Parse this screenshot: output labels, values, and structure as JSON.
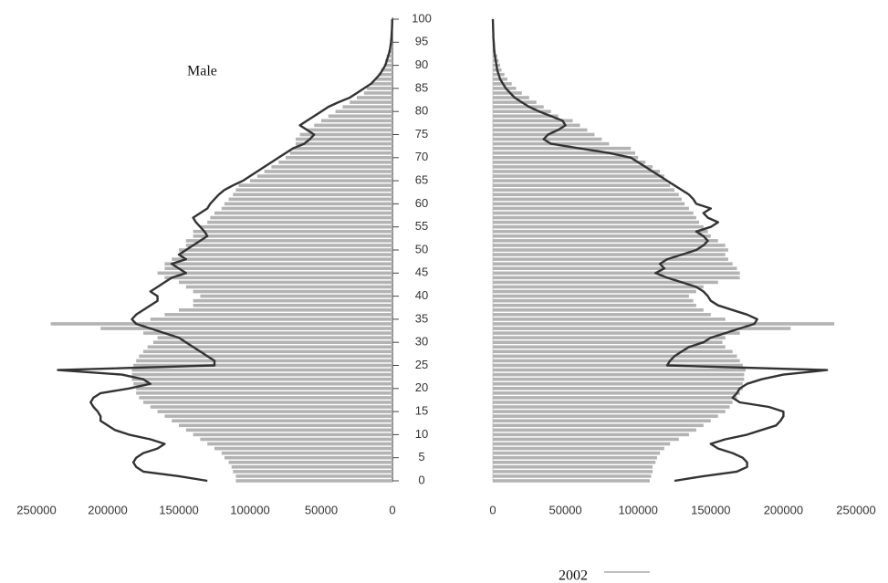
{
  "chart_data": {
    "type": "pyramid",
    "annotation": "Male",
    "legend": "2002",
    "ages": [
      0,
      1,
      2,
      3,
      4,
      5,
      6,
      7,
      8,
      9,
      10,
      11,
      12,
      13,
      14,
      15,
      16,
      17,
      18,
      19,
      20,
      21,
      22,
      23,
      24,
      25,
      26,
      27,
      28,
      29,
      30,
      31,
      32,
      33,
      34,
      35,
      36,
      37,
      38,
      39,
      40,
      41,
      42,
      43,
      44,
      45,
      46,
      47,
      48,
      49,
      50,
      51,
      52,
      53,
      54,
      55,
      56,
      57,
      58,
      59,
      60,
      61,
      62,
      63,
      64,
      65,
      66,
      67,
      68,
      69,
      70,
      71,
      72,
      73,
      74,
      75,
      76,
      77,
      78,
      79,
      80,
      81,
      82,
      83,
      84,
      85,
      86,
      87,
      88,
      89,
      90,
      91,
      92,
      93,
      94,
      95,
      96,
      97,
      98,
      99,
      100
    ],
    "xlim": [
      0,
      250000
    ],
    "xticks": [
      0,
      50000,
      100000,
      150000,
      200000,
      250000
    ],
    "ylim": [
      0,
      100
    ],
    "yticks": [
      0,
      5,
      10,
      15,
      20,
      25,
      30,
      35,
      40,
      45,
      50,
      55,
      60,
      65,
      70,
      75,
      80,
      85,
      90,
      95,
      100
    ],
    "series": [
      {
        "side": "left",
        "kind": "bar",
        "color": "#b3b3b3",
        "values": [
          110000,
          110000,
          112000,
          113000,
          115000,
          118000,
          120000,
          125000,
          130000,
          135000,
          140000,
          145000,
          150000,
          155000,
          160000,
          165000,
          170000,
          175000,
          178000,
          180000,
          180000,
          182000,
          183000,
          183000,
          183000,
          182000,
          180000,
          178000,
          175000,
          172000,
          168000,
          165000,
          175000,
          205000,
          240000,
          170000,
          160000,
          150000,
          140000,
          140000,
          135000,
          140000,
          145000,
          150000,
          160000,
          165000,
          160000,
          160000,
          155000,
          150000,
          150000,
          145000,
          145000,
          140000,
          140000,
          135000,
          130000,
          128000,
          125000,
          120000,
          118000,
          115000,
          112000,
          110000,
          108000,
          100000,
          95000,
          90000,
          85000,
          80000,
          75000,
          72000,
          70000,
          68000,
          68000,
          65000,
          60000,
          55000,
          50000,
          45000,
          40000,
          35000,
          30000,
          25000,
          20000,
          18000,
          15000,
          12000,
          10000,
          8000,
          6000,
          5000,
          4000,
          3000,
          2000,
          1500,
          1000,
          800,
          500,
          300,
          200
        ]
      },
      {
        "side": "left",
        "kind": "line",
        "color": "#333333",
        "values": [
          130000,
          150000,
          175000,
          180000,
          182000,
          180000,
          175000,
          165000,
          160000,
          170000,
          185000,
          195000,
          200000,
          205000,
          205000,
          207000,
          210000,
          212000,
          210000,
          205000,
          185000,
          170000,
          175000,
          190000,
          235000,
          125000,
          125000,
          130000,
          135000,
          140000,
          145000,
          150000,
          160000,
          170000,
          180000,
          183000,
          180000,
          175000,
          170000,
          165000,
          165000,
          170000,
          165000,
          160000,
          155000,
          145000,
          150000,
          155000,
          145000,
          150000,
          145000,
          140000,
          135000,
          130000,
          132000,
          135000,
          138000,
          140000,
          135000,
          130000,
          128000,
          125000,
          122000,
          118000,
          112000,
          105000,
          100000,
          95000,
          90000,
          85000,
          80000,
          75000,
          70000,
          62000,
          58000,
          55000,
          60000,
          65000,
          60000,
          55000,
          50000,
          45000,
          38000,
          30000,
          25000,
          20000,
          15000,
          12000,
          9000,
          7000,
          5000,
          4000,
          3000,
          2000,
          1500,
          1000,
          700,
          500,
          300,
          200,
          100
        ]
      },
      {
        "side": "right",
        "kind": "bar",
        "color": "#b3b3b3",
        "values": [
          108000,
          109000,
          110000,
          110000,
          112000,
          113000,
          115000,
          118000,
          122000,
          128000,
          135000,
          140000,
          145000,
          150000,
          155000,
          160000,
          163000,
          165000,
          168000,
          170000,
          172000,
          172000,
          173000,
          173000,
          174000,
          172000,
          170000,
          168000,
          165000,
          160000,
          158000,
          160000,
          170000,
          205000,
          235000,
          160000,
          150000,
          145000,
          140000,
          138000,
          135000,
          140000,
          145000,
          155000,
          170000,
          170000,
          168000,
          165000,
          162000,
          160000,
          162000,
          160000,
          155000,
          150000,
          148000,
          145000,
          142000,
          140000,
          138000,
          135000,
          132000,
          130000,
          128000,
          125000,
          122000,
          120000,
          118000,
          115000,
          110000,
          105000,
          100000,
          98000,
          95000,
          80000,
          75000,
          70000,
          65000,
          60000,
          55000,
          45000,
          40000,
          35000,
          30000,
          25000,
          20000,
          16000,
          13000,
          10000,
          8000,
          6000,
          5000,
          4000,
          3000,
          2000,
          1500,
          1000,
          800,
          500,
          300,
          200,
          100
        ]
      },
      {
        "side": "right",
        "kind": "line",
        "color": "#333333",
        "values": [
          125000,
          145000,
          168000,
          175000,
          175000,
          172000,
          165000,
          155000,
          150000,
          160000,
          175000,
          185000,
          195000,
          198000,
          200000,
          200000,
          190000,
          170000,
          165000,
          168000,
          170000,
          175000,
          185000,
          200000,
          230000,
          120000,
          122000,
          125000,
          130000,
          135000,
          145000,
          150000,
          160000,
          170000,
          180000,
          182000,
          175000,
          165000,
          155000,
          150000,
          148000,
          145000,
          140000,
          130000,
          120000,
          112000,
          118000,
          115000,
          120000,
          130000,
          140000,
          145000,
          148000,
          145000,
          140000,
          150000,
          155000,
          148000,
          145000,
          150000,
          140000,
          138000,
          135000,
          130000,
          125000,
          120000,
          115000,
          110000,
          105000,
          100000,
          95000,
          80000,
          60000,
          40000,
          35000,
          38000,
          45000,
          50000,
          48000,
          40000,
          32000,
          25000,
          20000,
          15000,
          12000,
          9000,
          7000,
          5000,
          4000,
          3000,
          2500,
          2000,
          1500,
          1000,
          800,
          600,
          400,
          300,
          200,
          100,
          0
        ]
      }
    ]
  }
}
